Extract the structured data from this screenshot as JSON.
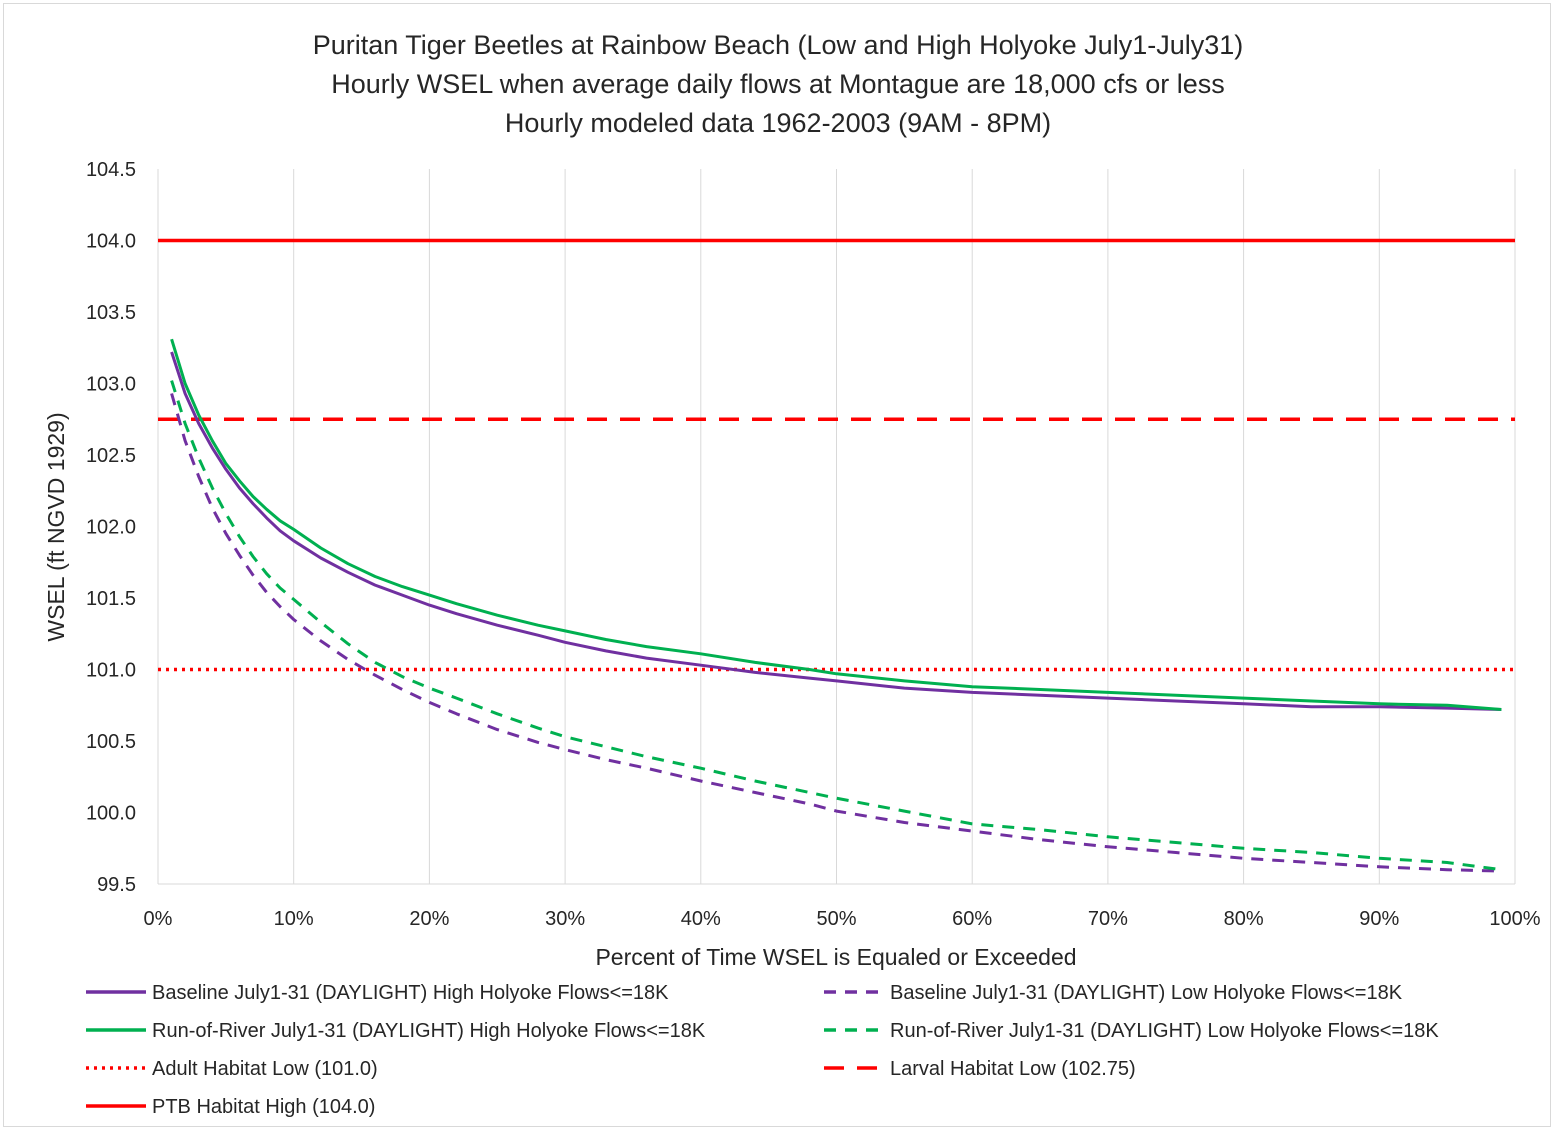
{
  "chart_data": {
    "type": "line",
    "title": [
      "Puritan Tiger Beetles at Rainbow Beach (Low and High Holyoke July1-July31)",
      "Hourly WSEL when average daily flows at Montague are 18,000 cfs or less",
      "Hourly modeled data 1962-2003  (9AM - 8PM)"
    ],
    "xlabel": "Percent of Time WSEL is Equaled or Exceeded",
    "ylabel": "WSEL (ft NGVD 1929)",
    "xlim": [
      0,
      100
    ],
    "ylim": [
      99.5,
      104.5
    ],
    "x_ticks": [
      "0%",
      "10%",
      "20%",
      "30%",
      "40%",
      "50%",
      "60%",
      "70%",
      "80%",
      "90%",
      "100%"
    ],
    "y_ticks": [
      "104.5",
      "104.0",
      "103.5",
      "103.0",
      "102.5",
      "102.0",
      "101.5",
      "101.0",
      "100.5",
      "100.0",
      "99.5"
    ],
    "grid": "vertical",
    "legend_position": "bottom",
    "series": [
      {
        "name": "Baseline July1-31 (DAYLIGHT) High Holyoke Flows<=18K",
        "color": "#7030a0",
        "style": "solid",
        "points": [
          [
            1,
            103.22
          ],
          [
            2,
            102.93
          ],
          [
            3,
            102.72
          ],
          [
            4,
            102.55
          ],
          [
            5,
            102.4
          ],
          [
            6,
            102.27
          ],
          [
            7,
            102.16
          ],
          [
            8,
            102.06
          ],
          [
            9,
            101.97
          ],
          [
            10,
            101.9
          ],
          [
            12,
            101.78
          ],
          [
            14,
            101.68
          ],
          [
            16,
            101.59
          ],
          [
            18,
            101.52
          ],
          [
            20,
            101.45
          ],
          [
            22,
            101.39
          ],
          [
            25,
            101.31
          ],
          [
            28,
            101.24
          ],
          [
            30,
            101.19
          ],
          [
            33,
            101.13
          ],
          [
            36,
            101.08
          ],
          [
            40,
            101.03
          ],
          [
            44,
            100.98
          ],
          [
            48,
            100.94
          ],
          [
            50,
            100.92
          ],
          [
            55,
            100.87
          ],
          [
            60,
            100.84
          ],
          [
            65,
            100.82
          ],
          [
            70,
            100.8
          ],
          [
            75,
            100.78
          ],
          [
            80,
            100.76
          ],
          [
            85,
            100.74
          ],
          [
            90,
            100.74
          ],
          [
            95,
            100.73
          ],
          [
            99,
            100.72
          ]
        ]
      },
      {
        "name": "Baseline July1-31 (DAYLIGHT) Low Holyoke Flows<=18K",
        "color": "#7030a0",
        "style": "dashed",
        "points": [
          [
            1,
            102.93
          ],
          [
            2,
            102.6
          ],
          [
            3,
            102.35
          ],
          [
            4,
            102.13
          ],
          [
            5,
            101.95
          ],
          [
            6,
            101.8
          ],
          [
            7,
            101.66
          ],
          [
            8,
            101.54
          ],
          [
            9,
            101.44
          ],
          [
            10,
            101.35
          ],
          [
            12,
            101.2
          ],
          [
            14,
            101.07
          ],
          [
            16,
            100.96
          ],
          [
            18,
            100.86
          ],
          [
            20,
            100.77
          ],
          [
            22,
            100.69
          ],
          [
            25,
            100.58
          ],
          [
            28,
            100.49
          ],
          [
            30,
            100.44
          ],
          [
            33,
            100.37
          ],
          [
            36,
            100.31
          ],
          [
            40,
            100.22
          ],
          [
            44,
            100.14
          ],
          [
            48,
            100.06
          ],
          [
            50,
            100.01
          ],
          [
            55,
            99.93
          ],
          [
            60,
            99.87
          ],
          [
            65,
            99.81
          ],
          [
            70,
            99.76
          ],
          [
            75,
            99.72
          ],
          [
            80,
            99.68
          ],
          [
            85,
            99.65
          ],
          [
            90,
            99.62
          ],
          [
            95,
            99.6
          ],
          [
            99,
            99.59
          ]
        ]
      },
      {
        "name": "Run-of-River July1-31 (DAYLIGHT) High Holyoke Flows<=18K",
        "color": "#00b050",
        "style": "solid",
        "points": [
          [
            1,
            103.31
          ],
          [
            2,
            103.0
          ],
          [
            3,
            102.78
          ],
          [
            4,
            102.6
          ],
          [
            5,
            102.44
          ],
          [
            6,
            102.32
          ],
          [
            7,
            102.21
          ],
          [
            8,
            102.12
          ],
          [
            9,
            102.04
          ],
          [
            10,
            101.98
          ],
          [
            12,
            101.85
          ],
          [
            14,
            101.74
          ],
          [
            16,
            101.65
          ],
          [
            18,
            101.58
          ],
          [
            20,
            101.52
          ],
          [
            22,
            101.46
          ],
          [
            25,
            101.38
          ],
          [
            28,
            101.31
          ],
          [
            30,
            101.27
          ],
          [
            33,
            101.21
          ],
          [
            36,
            101.16
          ],
          [
            40,
            101.11
          ],
          [
            44,
            101.05
          ],
          [
            48,
            101.0
          ],
          [
            50,
            100.97
          ],
          [
            55,
            100.92
          ],
          [
            60,
            100.88
          ],
          [
            65,
            100.86
          ],
          [
            70,
            100.84
          ],
          [
            75,
            100.82
          ],
          [
            80,
            100.8
          ],
          [
            85,
            100.78
          ],
          [
            90,
            100.76
          ],
          [
            95,
            100.75
          ],
          [
            99,
            100.72
          ]
        ]
      },
      {
        "name": "Run-of-River July1-31 (DAYLIGHT) Low Holyoke Flows<=18K",
        "color": "#00b050",
        "style": "dashed",
        "points": [
          [
            1,
            103.02
          ],
          [
            2,
            102.72
          ],
          [
            3,
            102.48
          ],
          [
            4,
            102.27
          ],
          [
            5,
            102.09
          ],
          [
            6,
            101.93
          ],
          [
            7,
            101.79
          ],
          [
            8,
            101.67
          ],
          [
            9,
            101.57
          ],
          [
            10,
            101.49
          ],
          [
            12,
            101.33
          ],
          [
            14,
            101.18
          ],
          [
            16,
            101.05
          ],
          [
            18,
            100.95
          ],
          [
            20,
            100.87
          ],
          [
            22,
            100.8
          ],
          [
            25,
            100.69
          ],
          [
            28,
            100.59
          ],
          [
            30,
            100.53
          ],
          [
            33,
            100.46
          ],
          [
            36,
            100.39
          ],
          [
            40,
            100.31
          ],
          [
            44,
            100.22
          ],
          [
            48,
            100.14
          ],
          [
            50,
            100.1
          ],
          [
            55,
            100.01
          ],
          [
            60,
            99.92
          ],
          [
            65,
            99.88
          ],
          [
            70,
            99.83
          ],
          [
            75,
            99.79
          ],
          [
            80,
            99.75
          ],
          [
            85,
            99.72
          ],
          [
            90,
            99.68
          ],
          [
            95,
            99.65
          ],
          [
            99,
            99.6
          ]
        ]
      },
      {
        "name": "Adult  Habitat Low (101.0)",
        "color": "#ff0000",
        "style": "dotted",
        "y": 101.0
      },
      {
        "name": "Larval Habitat Low (102.75)",
        "color": "#ff0000",
        "style": "longdash",
        "y": 102.75
      },
      {
        "name": "PTB Habitat High (104.0)",
        "color": "#ff0000",
        "style": "solid",
        "y": 104.0
      }
    ]
  }
}
